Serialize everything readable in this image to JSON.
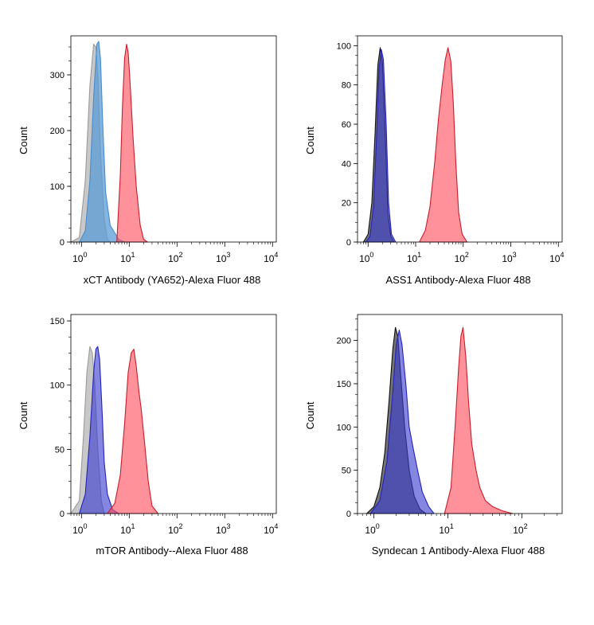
{
  "colors": {
    "sample": "#ff4d5e",
    "sample_edge": "#c81e2b",
    "isotype_blue": "#3a3ad0",
    "isotype_lightblue": "#5b9bd5",
    "unstained": "#1a1a1a",
    "unstained_light": "#b0b0b0"
  },
  "chart_data": [
    {
      "type": "area",
      "title": "",
      "xlabel": "xCT Antibody (YA652)-Alexa Fluor 488",
      "ylabel": "Count",
      "xscale": "log",
      "xlim": [
        0.6,
        12000
      ],
      "ylim": [
        0,
        370
      ],
      "yticks": [
        0,
        100,
        200,
        300
      ],
      "xticks": [
        1,
        10,
        100,
        1000,
        10000
      ],
      "series": [
        {
          "color": "unstained_light",
          "x": [
            0.6,
            0.9,
            1.2,
            1.5,
            1.8,
            2.0,
            2.2,
            2.5,
            3.0,
            3.5,
            4.0
          ],
          "values": [
            0,
            8,
            110,
            280,
            355,
            350,
            300,
            160,
            40,
            5,
            0
          ]
        },
        {
          "color": "isotype_lightblue",
          "x": [
            0.9,
            1.2,
            1.5,
            1.8,
            2.1,
            2.3,
            2.5,
            2.8,
            3.2,
            4.0,
            6.0,
            8.0
          ],
          "values": [
            0,
            20,
            110,
            260,
            355,
            360,
            330,
            210,
            90,
            30,
            5,
            0
          ]
        },
        {
          "color": "sample",
          "x": [
            5.5,
            6.5,
            7.2,
            8.0,
            8.8,
            9.5,
            10.5,
            12.0,
            14.0,
            17.0,
            20.0,
            24.0
          ],
          "values": [
            0,
            120,
            240,
            330,
            355,
            340,
            280,
            190,
            100,
            30,
            5,
            0
          ]
        }
      ]
    },
    {
      "type": "area",
      "title": "",
      "xlabel": "ASS1 Antibody-Alexa Fluor 488",
      "ylabel": "Count",
      "xscale": "log",
      "xlim": [
        0.6,
        12000
      ],
      "ylim": [
        0,
        105
      ],
      "yticks": [
        0,
        20,
        40,
        60,
        80,
        100
      ],
      "xticks": [
        1,
        10,
        100,
        1000,
        10000
      ],
      "series": [
        {
          "color": "unstained",
          "x": [
            0.8,
            1.0,
            1.2,
            1.4,
            1.6,
            1.8,
            2.0,
            2.3,
            2.6,
            3.0,
            3.5
          ],
          "values": [
            0,
            4,
            20,
            55,
            90,
            99,
            92,
            55,
            15,
            3,
            0
          ]
        },
        {
          "color": "isotype_blue",
          "x": [
            0.9,
            1.1,
            1.3,
            1.5,
            1.7,
            1.9,
            2.1,
            2.4,
            2.7,
            3.1,
            3.8
          ],
          "values": [
            0,
            3,
            18,
            52,
            88,
            98,
            93,
            60,
            20,
            4,
            0
          ]
        },
        {
          "color": "sample",
          "x": [
            12,
            16,
            20,
            25,
            30,
            36,
            42,
            48,
            55,
            62,
            70,
            80,
            95,
            120
          ],
          "values": [
            0,
            6,
            18,
            40,
            62,
            80,
            93,
            99,
            92,
            70,
            40,
            15,
            4,
            0
          ]
        }
      ]
    },
    {
      "type": "area",
      "title": "",
      "xlabel": "mTOR Antibody--Alexa Fluor 488",
      "ylabel": "Count",
      "xscale": "log",
      "xlim": [
        0.6,
        12000
      ],
      "ylim": [
        0,
        155
      ],
      "yticks": [
        0,
        50,
        100,
        150
      ],
      "xticks": [
        1,
        10,
        100,
        1000,
        10000
      ],
      "series": [
        {
          "color": "unstained_light",
          "x": [
            0.6,
            0.9,
            1.1,
            1.3,
            1.5,
            1.7,
            1.9,
            2.2,
            2.6,
            3.0
          ],
          "values": [
            0,
            10,
            60,
            110,
            130,
            125,
            100,
            50,
            10,
            0
          ]
        },
        {
          "color": "isotype_blue",
          "x": [
            0.9,
            1.2,
            1.5,
            1.8,
            2.0,
            2.2,
            2.4,
            2.7,
            3.0,
            3.5,
            4.5,
            6.0
          ],
          "values": [
            0,
            15,
            60,
            110,
            128,
            130,
            120,
            80,
            40,
            15,
            3,
            0
          ]
        },
        {
          "color": "sample",
          "x": [
            3.5,
            5.0,
            6.5,
            8.0,
            9.5,
            11.0,
            12.5,
            14.0,
            16.0,
            18.0,
            21.0,
            25.0,
            30.0,
            40.0
          ],
          "values": [
            0,
            8,
            30,
            70,
            110,
            125,
            128,
            115,
            95,
            80,
            55,
            25,
            6,
            0
          ]
        }
      ]
    },
    {
      "type": "area",
      "title": "",
      "xlabel": "Syndecan 1 Antibody-Alexa Fluor 488",
      "ylabel": "Count",
      "xscale": "log",
      "xlim": [
        0.6,
        350
      ],
      "ylim": [
        0,
        230
      ],
      "yticks": [
        0,
        50,
        100,
        150,
        200
      ],
      "xticks": [
        1,
        10,
        100
      ],
      "series": [
        {
          "color": "unstained",
          "x": [
            0.8,
            1.0,
            1.2,
            1.4,
            1.6,
            1.8,
            1.95,
            2.1,
            2.3,
            2.6,
            3.0,
            3.5,
            4.2,
            5.0
          ],
          "values": [
            0,
            8,
            30,
            70,
            130,
            190,
            215,
            205,
            160,
            100,
            50,
            20,
            5,
            0
          ]
        },
        {
          "color": "isotype_blue",
          "x": [
            0.9,
            1.2,
            1.5,
            1.8,
            2.0,
            2.2,
            2.4,
            2.7,
            3.0,
            3.4,
            3.9,
            4.5,
            5.5,
            6.5
          ],
          "values": [
            0,
            15,
            60,
            140,
            195,
            212,
            195,
            150,
            100,
            75,
            50,
            25,
            8,
            0
          ]
        },
        {
          "color": "sample",
          "x": [
            9.0,
            11.0,
            12.5,
            14.0,
            15.0,
            16.0,
            17.5,
            19.0,
            21.0,
            24.0,
            27.0,
            32.0,
            40.0,
            55.0,
            75.0
          ],
          "values": [
            0,
            30,
            100,
            170,
            205,
            215,
            180,
            130,
            80,
            50,
            30,
            15,
            8,
            3,
            0
          ]
        }
      ]
    }
  ]
}
